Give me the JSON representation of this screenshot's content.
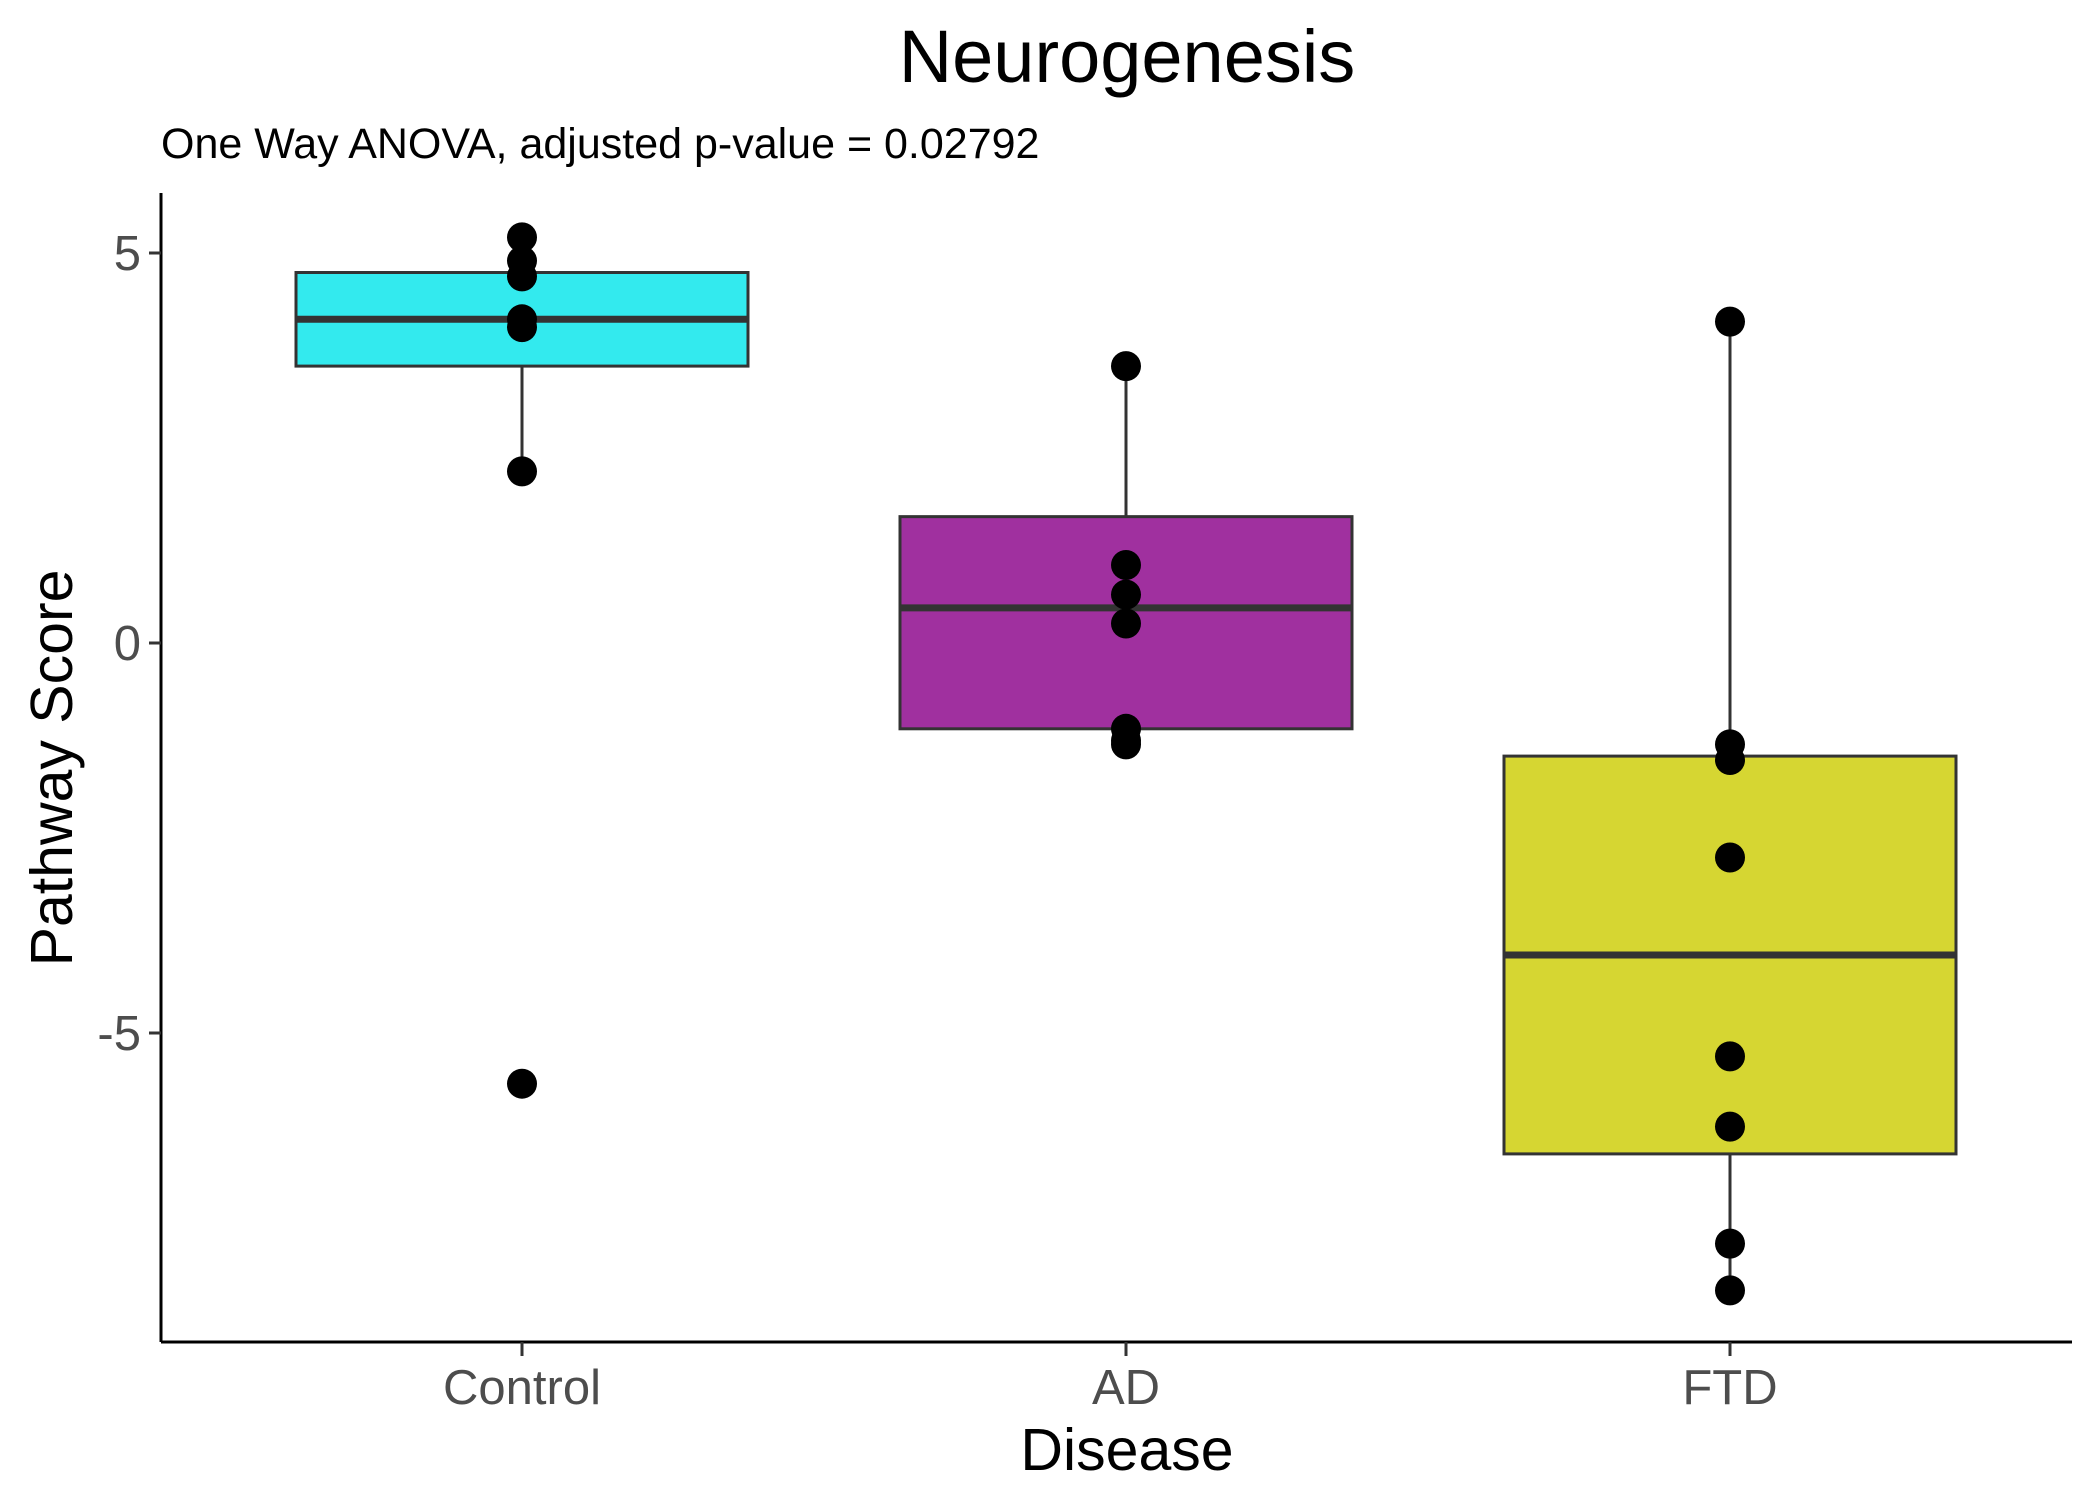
{
  "chart_data": {
    "type": "box",
    "title": "Neurogenesis",
    "subtitle": "One Way ANOVA, adjusted p-value = 0.02792",
    "xlabel": "Disease",
    "ylabel": "Pathway Score",
    "ylim": [
      -9,
      5.8
    ],
    "yticks": [
      5,
      0,
      -5
    ],
    "ytick_labels": [
      "5",
      "0",
      "-5"
    ],
    "grid": false,
    "legend": "none",
    "categories": [
      "Control",
      "AD",
      "FTD"
    ],
    "colors": [
      "#33EAEE",
      "#A0309F",
      "#D6D632"
    ],
    "boxes": [
      {
        "category": "Control",
        "whisker_low": 2.2,
        "q1": 3.55,
        "median": 4.15,
        "q3": 4.75,
        "whisker_high": 5.2
      },
      {
        "category": "AD",
        "whisker_low": -1.3,
        "q1": -1.1,
        "median": 0.45,
        "q3": 1.62,
        "whisker_high": 3.55
      },
      {
        "category": "FTD",
        "whisker_low": -8.3,
        "q1": -6.55,
        "median": -4.0,
        "q3": -1.45,
        "whisker_high": 4.12
      }
    ],
    "points": [
      {
        "category": "Control",
        "values": [
          5.2,
          4.9,
          4.7,
          4.15,
          4.05,
          2.2,
          -5.65
        ]
      },
      {
        "category": "AD",
        "values": [
          3.55,
          1.0,
          0.62,
          0.25,
          -1.1,
          -1.25,
          -1.3
        ]
      },
      {
        "category": "FTD",
        "values": [
          4.12,
          -1.3,
          -1.5,
          -2.75,
          -5.3,
          -6.2,
          -7.7,
          -8.3
        ]
      }
    ]
  }
}
